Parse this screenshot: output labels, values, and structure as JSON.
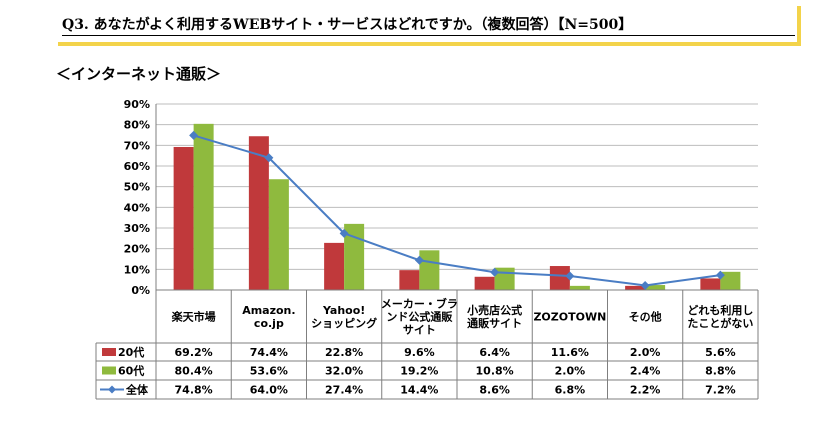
{
  "question": {
    "text": "Q3. あなたがよく利用するWEBサイト・サービスはどれですか。（複数回答）【N=500】"
  },
  "section_title": "＜インターネット通販＞",
  "chart_data": {
    "type": "bar",
    "title": "",
    "ylim": [
      0,
      90
    ],
    "ytick_labels": [
      "0%",
      "10%",
      "20%",
      "30%",
      "40%",
      "50%",
      "60%",
      "70%",
      "80%",
      "90%"
    ],
    "categories": [
      "楽天市場",
      "Amazon.\nco.jp",
      "Yahoo!\nショッピング",
      "メーカー・ブラ\nンド公式通販\nサイト",
      "小売店公式\n通販サイト",
      "ZOZOTOWN",
      "その他",
      "どれも利用し\nたことがない"
    ],
    "series": [
      {
        "name": "20代",
        "kind": "bar",
        "color": "#c0393b",
        "values": [
          69.2,
          74.4,
          22.8,
          9.6,
          6.4,
          11.6,
          2.0,
          5.6
        ],
        "labels": [
          "69.2%",
          "74.4%",
          "22.8%",
          "9.6%",
          "6.4%",
          "11.6%",
          "2.0%",
          "5.6%"
        ]
      },
      {
        "name": "60代",
        "kind": "bar",
        "color": "#8fba3e",
        "values": [
          80.4,
          53.6,
          32.0,
          19.2,
          10.8,
          2.0,
          2.4,
          8.8
        ],
        "labels": [
          "80.4%",
          "53.6%",
          "32.0%",
          "19.2%",
          "10.8%",
          "2.0%",
          "2.4%",
          "8.8%"
        ]
      },
      {
        "name": "全体",
        "kind": "line",
        "color": "#4a7dc4",
        "values": [
          74.8,
          64.0,
          27.4,
          14.4,
          8.6,
          6.8,
          2.2,
          7.2
        ],
        "labels": [
          "74.8%",
          "64.0%",
          "27.4%",
          "14.4%",
          "8.6%",
          "6.8%",
          "2.2%",
          "7.2%"
        ]
      }
    ]
  }
}
